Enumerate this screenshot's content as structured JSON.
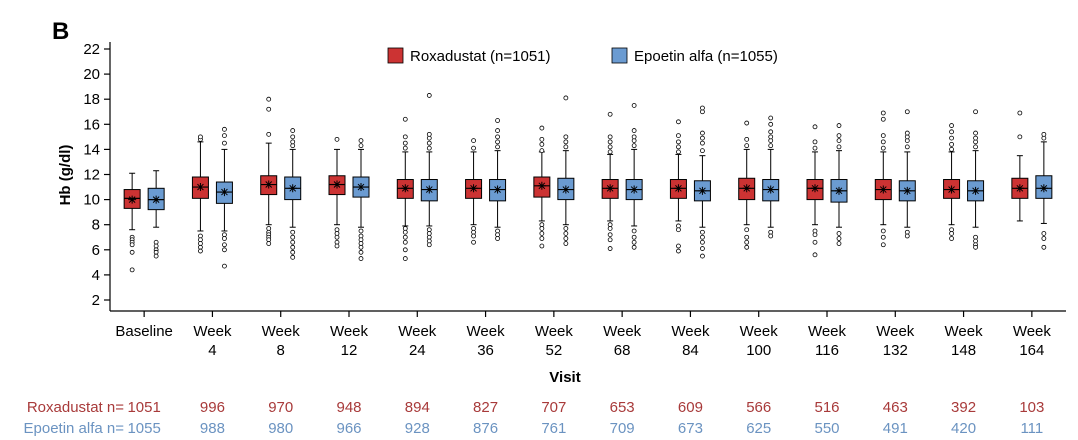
{
  "panel_label": "B",
  "colors": {
    "roxadustat": "#cc3333",
    "epoetin": "#6b9bd1",
    "rox_text": "#a83a3a",
    "epo_text": "#6b93c1",
    "axis": "#000000"
  },
  "chart_data": {
    "type": "box",
    "ylabel": "Hb (g/dl)",
    "xlabel": "Visit",
    "ylim": [
      2,
      22
    ],
    "yticks": [
      "2",
      "4",
      "6",
      "8",
      "10",
      "12",
      "14",
      "16",
      "18",
      "20",
      "22"
    ],
    "legend_position": "top",
    "categories": [
      [
        "Baseline"
      ],
      [
        "Week",
        "4"
      ],
      [
        "Week",
        "8"
      ],
      [
        "Week",
        "12"
      ],
      [
        "Week",
        "24"
      ],
      [
        "Week",
        "36"
      ],
      [
        "Week",
        "52"
      ],
      [
        "Week",
        "68"
      ],
      [
        "Week",
        "84"
      ],
      [
        "Week",
        "100"
      ],
      [
        "Week",
        "116"
      ],
      [
        "Week",
        "132"
      ],
      [
        "Week",
        "148"
      ],
      [
        "Week",
        "164"
      ]
    ],
    "series": [
      {
        "name": "Roxadustat (n=1051)",
        "n_label": "Roxadustat n=",
        "n": [
          "1051",
          "996",
          "970",
          "948",
          "894",
          "827",
          "707",
          "653",
          "609",
          "566",
          "516",
          "463",
          "392",
          "103"
        ],
        "boxes": [
          {
            "q1": 9.3,
            "median": 10.1,
            "q3": 10.8,
            "mean": 10.0,
            "wlo": 7.6,
            "whi": 12.1,
            "outliers": [
              7.0,
              6.8,
              6.6,
              6.4,
              5.8,
              4.4
            ]
          },
          {
            "q1": 10.1,
            "median": 11.0,
            "q3": 11.8,
            "mean": 11.0,
            "wlo": 7.5,
            "whi": 14.6,
            "outliers": [
              7.1,
              6.8,
              6.5,
              6.2,
              5.9,
              14.8,
              15.0
            ]
          },
          {
            "q1": 10.4,
            "median": 11.2,
            "q3": 11.9,
            "mean": 11.2,
            "wlo": 8.0,
            "whi": 14.5,
            "outliers": [
              7.7,
              7.4,
              7.2,
              7.0,
              6.8,
              6.5,
              15.2,
              17.2,
              18.0
            ]
          },
          {
            "q1": 10.4,
            "median": 11.2,
            "q3": 11.9,
            "mean": 11.2,
            "wlo": 8.0,
            "whi": 14.0,
            "outliers": [
              7.6,
              7.3,
              7.0,
              6.6,
              6.3,
              14.8
            ]
          },
          {
            "q1": 10.1,
            "median": 10.9,
            "q3": 11.6,
            "mean": 10.9,
            "wlo": 7.9,
            "whi": 13.8,
            "outliers": [
              7.7,
              7.4,
              7.0,
              6.6,
              6.0,
              5.3,
              14.1,
              14.5,
              15.0,
              16.4
            ]
          },
          {
            "q1": 10.1,
            "median": 10.9,
            "q3": 11.6,
            "mean": 10.9,
            "wlo": 8.0,
            "whi": 13.8,
            "outliers": [
              7.7,
              7.4,
              7.1,
              6.6,
              14.1,
              14.7
            ]
          },
          {
            "q1": 10.2,
            "median": 11.1,
            "q3": 11.8,
            "mean": 11.1,
            "wlo": 8.3,
            "whi": 13.8,
            "outliers": [
              8.0,
              7.7,
              7.3,
              6.9,
              6.3,
              13.9,
              14.4,
              14.8,
              15.7
            ]
          },
          {
            "q1": 10.1,
            "median": 10.9,
            "q3": 11.6,
            "mean": 10.9,
            "wlo": 8.3,
            "whi": 13.6,
            "outliers": [
              8.0,
              7.7,
              7.2,
              6.8,
              6.1,
              13.8,
              14.2,
              14.6,
              15.0,
              16.8
            ]
          },
          {
            "q1": 10.1,
            "median": 10.9,
            "q3": 11.6,
            "mean": 10.9,
            "wlo": 8.3,
            "whi": 13.6,
            "outliers": [
              7.9,
              7.6,
              6.3,
              5.9,
              13.8,
              14.2,
              14.6,
              15.1,
              16.2
            ]
          },
          {
            "q1": 10.0,
            "median": 10.9,
            "q3": 11.7,
            "mean": 10.9,
            "wlo": 8.0,
            "whi": 14.0,
            "outliers": [
              7.6,
              7.0,
              6.6,
              6.2,
              14.3,
              14.8,
              16.1
            ]
          },
          {
            "q1": 10.0,
            "median": 10.9,
            "q3": 11.6,
            "mean": 10.9,
            "wlo": 8.0,
            "whi": 13.8,
            "outliers": [
              7.5,
              7.2,
              6.6,
              5.6,
              14.1,
              14.6,
              15.8
            ]
          },
          {
            "q1": 10.0,
            "median": 10.8,
            "q3": 11.6,
            "mean": 10.8,
            "wlo": 8.0,
            "whi": 13.8,
            "outliers": [
              7.5,
              7.0,
              6.4,
              14.1,
              14.6,
              15.1,
              16.4,
              16.9
            ]
          },
          {
            "q1": 10.1,
            "median": 10.8,
            "q3": 11.6,
            "mean": 10.8,
            "wlo": 8.0,
            "whi": 13.8,
            "outliers": [
              7.6,
              7.3,
              6.9,
              14.0,
              14.4,
              14.9,
              15.4,
              15.9
            ]
          },
          {
            "q1": 10.1,
            "median": 10.9,
            "q3": 11.7,
            "mean": 10.9,
            "wlo": 8.3,
            "whi": 13.5,
            "outliers": [
              15.0,
              16.9
            ]
          }
        ]
      },
      {
        "name": "Epoetin alfa (n=1055)",
        "n_label": "Epoetin alfa n=",
        "n": [
          "1055",
          "988",
          "980",
          "966",
          "928",
          "876",
          "761",
          "709",
          "673",
          "625",
          "550",
          "491",
          "420",
          "111"
        ],
        "boxes": [
          {
            "q1": 9.2,
            "median": 10.0,
            "q3": 10.9,
            "mean": 10.0,
            "wlo": 7.8,
            "whi": 12.3,
            "outliers": [
              6.6,
              6.3,
              6.0,
              5.8,
              5.5
            ]
          },
          {
            "q1": 9.7,
            "median": 10.6,
            "q3": 11.4,
            "mean": 10.6,
            "wlo": 7.5,
            "whi": 14.0,
            "outliers": [
              7.2,
              6.9,
              6.4,
              6.0,
              4.7,
              14.5,
              15.1,
              15.6
            ]
          },
          {
            "q1": 10.0,
            "median": 10.9,
            "q3": 11.8,
            "mean": 10.9,
            "wlo": 7.8,
            "whi": 14.0,
            "outliers": [
              7.4,
              7.0,
              6.6,
              6.2,
              5.8,
              5.4,
              14.3,
              14.6,
              15.0,
              15.5
            ]
          },
          {
            "q1": 10.2,
            "median": 11.0,
            "q3": 11.8,
            "mean": 11.0,
            "wlo": 7.8,
            "whi": 14.0,
            "outliers": [
              7.5,
              7.1,
              6.8,
              6.5,
              6.2,
              5.8,
              5.3,
              14.3,
              14.7
            ]
          },
          {
            "q1": 9.9,
            "median": 10.8,
            "q3": 11.6,
            "mean": 10.8,
            "wlo": 7.9,
            "whi": 13.8,
            "outliers": [
              7.6,
              7.3,
              7.0,
              6.7,
              6.4,
              14.1,
              14.5,
              14.9,
              15.2,
              18.3
            ]
          },
          {
            "q1": 9.9,
            "median": 10.8,
            "q3": 11.6,
            "mean": 10.8,
            "wlo": 7.8,
            "whi": 13.9,
            "outliers": [
              7.5,
              7.2,
              6.9,
              14.2,
              14.6,
              15.0,
              15.5,
              16.3
            ]
          },
          {
            "q1": 10.0,
            "median": 10.8,
            "q3": 11.7,
            "mean": 10.8,
            "wlo": 8.0,
            "whi": 13.9,
            "outliers": [
              7.7,
              7.3,
              6.9,
              6.5,
              14.2,
              14.6,
              15.0,
              18.1
            ]
          },
          {
            "q1": 10.0,
            "median": 10.8,
            "q3": 11.6,
            "mean": 10.8,
            "wlo": 7.9,
            "whi": 14.0,
            "outliers": [
              7.5,
              7.0,
              6.6,
              6.2,
              14.3,
              14.7,
              15.0,
              15.5,
              17.5
            ]
          },
          {
            "q1": 9.9,
            "median": 10.7,
            "q3": 11.5,
            "mean": 10.7,
            "wlo": 7.8,
            "whi": 13.5,
            "outliers": [
              7.4,
              7.0,
              6.6,
              6.1,
              5.5,
              13.9,
              14.5,
              14.9,
              15.3,
              17.0,
              17.3
            ]
          },
          {
            "q1": 9.9,
            "median": 10.8,
            "q3": 11.6,
            "mean": 10.8,
            "wlo": 7.8,
            "whi": 14.0,
            "outliers": [
              7.4,
              7.1,
              14.3,
              14.7,
              15.0,
              15.4,
              16.0,
              16.5
            ]
          },
          {
            "q1": 9.8,
            "median": 10.7,
            "q3": 11.6,
            "mean": 10.7,
            "wlo": 7.8,
            "whi": 13.9,
            "outliers": [
              7.3,
              6.9,
              6.5,
              14.2,
              14.7,
              15.1,
              15.9
            ]
          },
          {
            "q1": 9.9,
            "median": 10.7,
            "q3": 11.5,
            "mean": 10.7,
            "wlo": 7.8,
            "whi": 13.8,
            "outliers": [
              7.4,
              7.1,
              14.2,
              14.7,
              15.0,
              15.3,
              17.0
            ]
          },
          {
            "q1": 9.9,
            "median": 10.7,
            "q3": 11.5,
            "mean": 10.7,
            "wlo": 7.8,
            "whi": 13.9,
            "outliers": [
              7.0,
              6.7,
              6.4,
              6.2,
              14.2,
              14.6,
              14.9,
              15.3,
              17.0
            ]
          },
          {
            "q1": 10.1,
            "median": 10.9,
            "q3": 11.9,
            "mean": 10.9,
            "wlo": 8.1,
            "whi": 14.6,
            "outliers": [
              7.3,
              6.9,
              6.2,
              14.9,
              15.2
            ]
          }
        ]
      }
    ]
  }
}
